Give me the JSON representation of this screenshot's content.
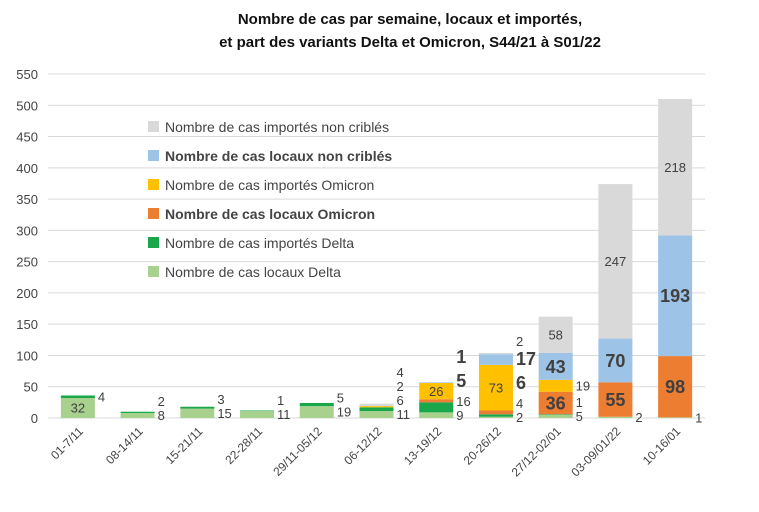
{
  "chart_data": {
    "type": "bar",
    "stacked": true,
    "title": "Nombre de cas par semaine, locaux et importés,",
    "subtitle": "et part des variants Delta et Omicron, S44/21 à S01/22",
    "xlabel": "",
    "ylabel": "",
    "ylim": [
      0,
      550
    ],
    "yticks": [
      "0",
      "50",
      "100",
      "150",
      "200",
      "250",
      "300",
      "350",
      "400",
      "450",
      "500",
      "550"
    ],
    "grid": true,
    "legend_position": "top-left",
    "categories": [
      "01-7/11",
      "08-14/11",
      "15-21/11",
      "22-28/11",
      "29/11-05/12",
      "06-12/12",
      "13-19/12",
      "20-26/12",
      "27/12-02/01",
      "03-09/01/22",
      "10-16/01"
    ],
    "series": [
      {
        "name": "Nombre de cas locaux Delta",
        "color": "#a9d18e",
        "bold": false,
        "values": [
          32,
          8,
          15,
          11,
          19,
          11,
          9,
          2,
          5,
          2,
          1
        ]
      },
      {
        "name": "Nombre de cas importés Delta",
        "color": "#1aa64a",
        "bold": false,
        "values": [
          4,
          2,
          3,
          1,
          5,
          6,
          16,
          4,
          1,
          0,
          0
        ]
      },
      {
        "name": "Nombre de cas locaux Omicron",
        "color": "#ed7d31",
        "bold": true,
        "values": [
          0,
          0,
          0,
          0,
          0,
          0,
          5,
          6,
          36,
          55,
          98
        ]
      },
      {
        "name": "Nombre de cas importés Omicron",
        "color": "#ffc000",
        "bold": false,
        "values": [
          0,
          0,
          0,
          0,
          0,
          2,
          26,
          73,
          19,
          0,
          0
        ]
      },
      {
        "name": "Nombre de cas locaux non criblés",
        "color": "#9dc3e6",
        "bold": true,
        "values": [
          0,
          0,
          0,
          0,
          0,
          0,
          1,
          17,
          43,
          70,
          193
        ]
      },
      {
        "name": "Nombre de cas importés non criblés",
        "color": "#d9d9d9",
        "bold": false,
        "values": [
          0,
          0,
          0,
          0,
          0,
          4,
          0,
          2,
          58,
          247,
          218
        ]
      }
    ]
  }
}
